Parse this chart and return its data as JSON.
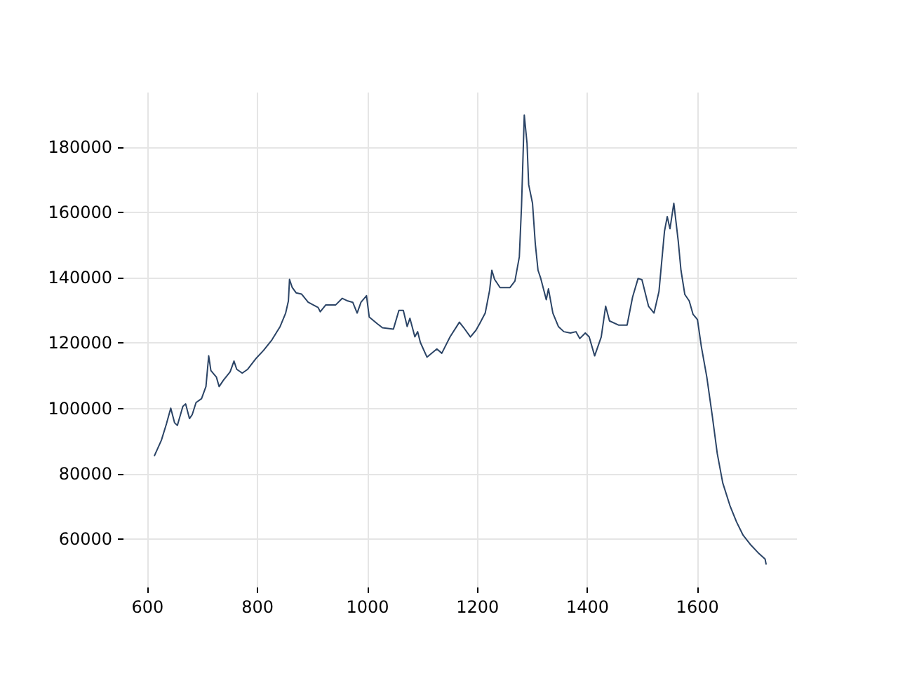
{
  "chart_data": {
    "type": "line",
    "x": [
      612,
      625,
      634,
      642,
      649,
      654,
      664,
      669,
      676,
      681,
      688,
      698,
      706,
      711,
      715,
      725,
      730,
      738,
      750,
      757,
      762,
      772,
      782,
      797,
      811,
      826,
      841,
      851,
      856,
      858,
      863,
      870,
      880,
      892,
      910,
      914,
      924,
      942,
      954,
      964,
      973,
      981,
      988,
      998,
      1003,
      1018,
      1027,
      1047,
      1057,
      1065,
      1072,
      1077,
      1086,
      1091,
      1096,
      1108,
      1126,
      1135,
      1150,
      1167,
      1175,
      1187,
      1197,
      1204,
      1214,
      1222,
      1226,
      1231,
      1241,
      1259,
      1268,
      1276,
      1280,
      1285,
      1290,
      1293,
      1300,
      1305,
      1310,
      1315,
      1325,
      1329,
      1337,
      1347,
      1357,
      1369,
      1379,
      1386,
      1396,
      1403,
      1413,
      1425,
      1433,
      1440,
      1457,
      1472,
      1482,
      1492,
      1499,
      1511,
      1521,
      1530,
      1540,
      1545,
      1550,
      1557,
      1565,
      1570,
      1577,
      1585,
      1592,
      1600,
      1607,
      1617,
      1627,
      1636,
      1646,
      1659,
      1671,
      1683,
      1696,
      1710,
      1723,
      1725
    ],
    "series": [
      {
        "color": "#2b4466",
        "values": [
          85400,
          90300,
          95200,
          100100,
          95600,
          94800,
          100600,
          101400,
          96900,
          98100,
          101800,
          103000,
          106700,
          116100,
          111600,
          109600,
          106700,
          108700,
          111200,
          114500,
          112000,
          110800,
          112000,
          115300,
          117800,
          121000,
          125100,
          129200,
          132900,
          139500,
          137000,
          135400,
          135000,
          132500,
          130900,
          129600,
          131700,
          131700,
          133700,
          132900,
          132500,
          129200,
          132500,
          134500,
          128000,
          125900,
          124700,
          124300,
          130000,
          130000,
          125100,
          127600,
          121900,
          123500,
          120200,
          115700,
          118200,
          116900,
          121900,
          126400,
          124700,
          121900,
          123900,
          126000,
          129200,
          136200,
          142300,
          139500,
          137000,
          137000,
          139000,
          146400,
          162000,
          189800,
          181200,
          168500,
          162800,
          150500,
          142300,
          139800,
          133300,
          136600,
          129200,
          125100,
          123500,
          123100,
          123500,
          121400,
          123100,
          121900,
          116100,
          121900,
          131300,
          126800,
          125500,
          125500,
          134100,
          139800,
          139400,
          131300,
          129200,
          135800,
          154200,
          158700,
          155000,
          162800,
          151300,
          142300,
          134900,
          132900,
          128800,
          127200,
          119000,
          109600,
          97700,
          86200,
          77200,
          70300,
          65300,
          61200,
          58400,
          55900,
          53900,
          52200
        ]
      }
    ],
    "xlim": [
      556,
      1781
    ],
    "ylim": [
      45200,
      196700
    ],
    "xticks": [
      600,
      800,
      1000,
      1200,
      1400,
      1600
    ],
    "yticks": [
      60000,
      80000,
      100000,
      120000,
      140000,
      160000,
      180000
    ],
    "grid": true,
    "marker": "none",
    "line_style": "solid"
  }
}
